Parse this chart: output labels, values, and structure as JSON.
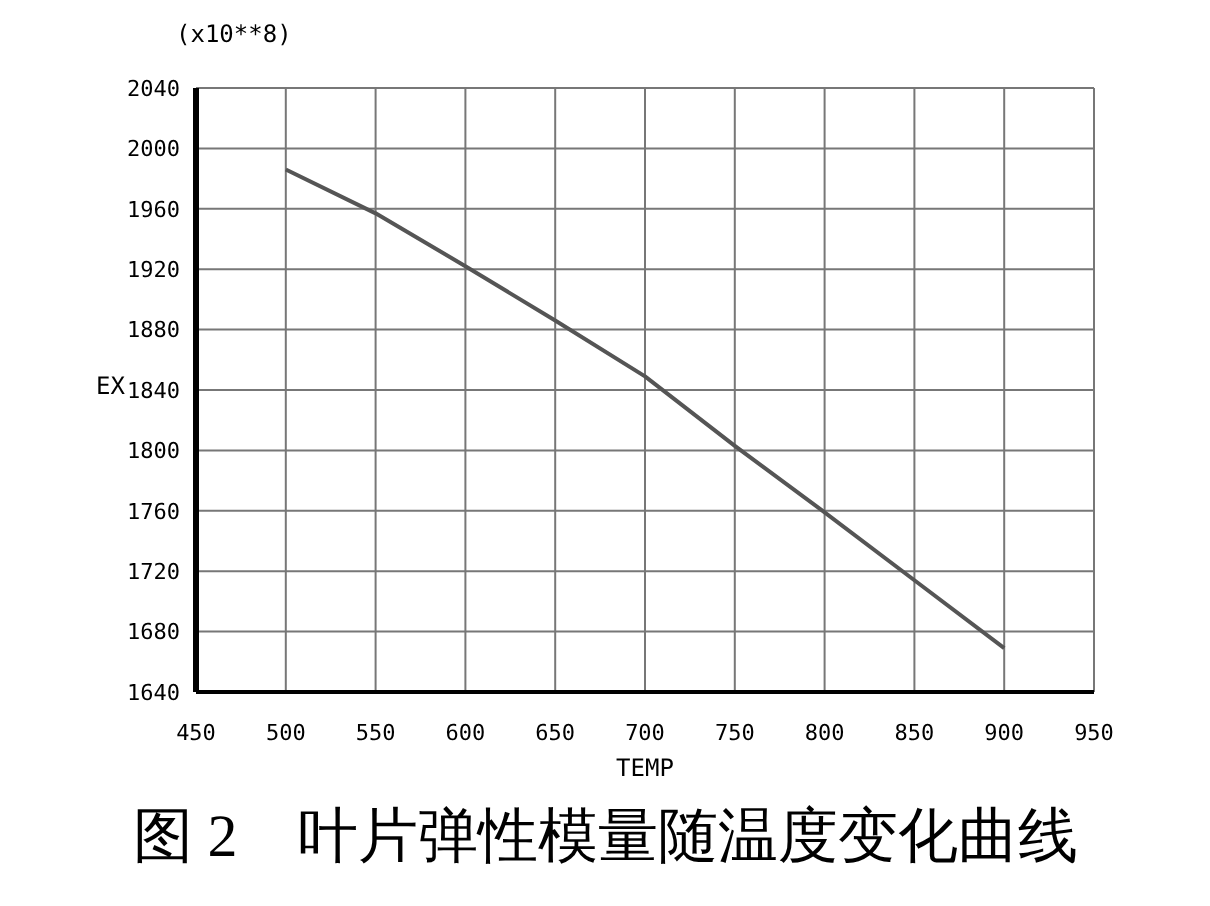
{
  "chart_data": {
    "type": "line",
    "title": "图 2　叶片弹性模量随温度变化曲线",
    "xlabel": "TEMP",
    "ylabel": "EX",
    "annotations": [
      "(x10**8)"
    ],
    "x": [
      500,
      550,
      600,
      650,
      700,
      750,
      800,
      850,
      900
    ],
    "series": [
      {
        "color": "#555555",
        "values": [
          1986,
          1957,
          1922,
          1886,
          1849,
          1803,
          1759,
          1714,
          1669
        ]
      }
    ],
    "xlim": [
      450,
      950
    ],
    "xticks": [
      450,
      500,
      550,
      600,
      650,
      700,
      750,
      800,
      850,
      900,
      950
    ],
    "ylim": [
      1640,
      2040
    ],
    "yticks": [
      1640,
      1680,
      1720,
      1760,
      1800,
      1840,
      1880,
      1920,
      1960,
      2000,
      2040
    ],
    "grid": true,
    "marker": "none",
    "line_style": "solid",
    "legend": false
  }
}
